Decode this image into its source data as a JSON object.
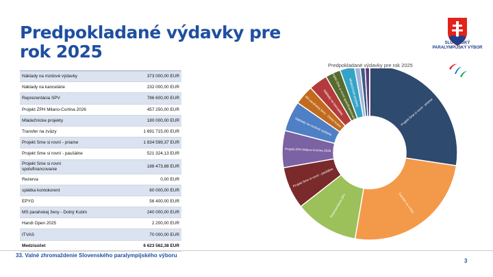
{
  "slide": {
    "title": "Predpokladané výdavky pre rok 2025",
    "footer": "33. Valné zhromaždenie Slovenského paralympijského výboru",
    "page_number": "3"
  },
  "logo": {
    "text": "SLOVENSKÝ PARALYMPIJSKÝ VÝBOR",
    "colors": {
      "red": "#e2231a",
      "blue": "#1f3f8a",
      "white": "#ffffff",
      "agitos_red": "#d2232a",
      "agitos_blue": "#0072bc",
      "agitos_green": "#00a651"
    }
  },
  "table": {
    "rows": [
      {
        "label": "Náklady na mzdové výdavky",
        "amount": "373 000,00 EUR"
      },
      {
        "label": "Náklady na kancelárie",
        "amount": "232 000,00 EUR"
      },
      {
        "label": "Reprezentácia SPV",
        "amount": "786 600,00 EUR"
      },
      {
        "label": "Projekt ZPH Milano-Cortina 2026",
        "amount": "457 250,00 EUR"
      },
      {
        "label": "Mládežnícke projekty",
        "amount": "180 000,00 EUR"
      },
      {
        "label": "Transfer  na zväzy",
        "amount": "1 691 715,00 EUR"
      },
      {
        "label": "Projekt Sme si rovní  - priame",
        "amount": "1 834 599,37 EUR"
      },
      {
        "label": "Projekt Sme si rovní - paušálne",
        "amount": "521 324,13 EUR"
      },
      {
        "label": " Projekt Sme si rovní spolufinancovanie",
        "amount": "188 473,88 EUR"
      },
      {
        "label": "Rezerva",
        "amount": "0,00 EUR"
      },
      {
        "label": "splátka kontokorent",
        "amount": "60 000,00 EUR"
      },
      {
        "label": "EPYG",
        "amount": "56 400,00 EUR"
      },
      {
        "label": "MS parahokej ženy - Dolný Kubín",
        "amount": "240 000,00 EUR"
      },
      {
        "label": "Handi Open 2025",
        "amount": "2 200,00 EUR"
      },
      {
        "label": "ITVAS",
        "amount": "70 000,00 EUR"
      }
    ],
    "total": {
      "label": "Medzisúčet",
      "amount": "6 623 562,38 EUR"
    }
  },
  "chart_data": {
    "type": "pie",
    "title": "Predpokladané výdavky pre rok 2025",
    "donut": true,
    "slices": [
      {
        "label": "Projekt Sme si rovní - priame",
        "value": 1834599.37,
        "color": "#2e4a6e"
      },
      {
        "label": "Transfer na zväzy",
        "value": 1691715.0,
        "color": "#f39a4a"
      },
      {
        "label": "Reprezentácia SPV",
        "value": 786600.0,
        "color": "#9cc05a"
      },
      {
        "label": "Projekt Sme si rovní - paušálne",
        "value": 521324.13,
        "color": "#7a2a2a"
      },
      {
        "label": "Projekt ZPH Milano-Cortina 2026",
        "value": 457250.0,
        "color": "#7b62a3"
      },
      {
        "label": "Náklady na mzdové výdavky",
        "value": 373000.0,
        "color": "#4f7fc4"
      },
      {
        "label": "MS parahokej ženy - Dolný Kubín",
        "value": 240000.0,
        "color": "#c26a1e"
      },
      {
        "label": "Náklady na kancelárie",
        "value": 232000.0,
        "color": "#b43b3b"
      },
      {
        "label": "Projekt Sme si rovní spolufinancovanie",
        "value": 188473.88,
        "color": "#566b2e"
      },
      {
        "label": "Mládežnícke projekty",
        "value": 180000.0,
        "color": "#35a3c7"
      },
      {
        "label": "ITVAS",
        "value": 70000.0,
        "color": "#9fb4d8"
      },
      {
        "label": "splátka kontokorent",
        "value": 60000.0,
        "color": "#3d5a80"
      },
      {
        "label": "EPYG",
        "value": 56400.0,
        "color": "#5e3a7a"
      },
      {
        "label": "Handi Open 2025",
        "value": 2200.0,
        "color": "#e07b1f"
      }
    ]
  }
}
